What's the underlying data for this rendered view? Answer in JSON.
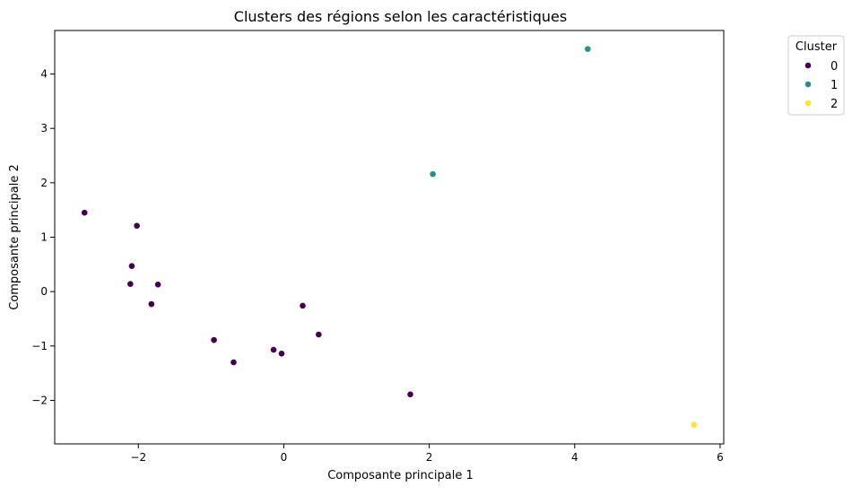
{
  "chart_data": {
    "type": "scatter",
    "title": "Clusters des régions selon les caractéristiques",
    "xlabel": "Composante principale 1",
    "ylabel": "Composante principale 2",
    "xlim": [
      -3.15,
      6.05
    ],
    "ylim": [
      -2.8,
      4.8
    ],
    "xticks": [
      -2,
      0,
      2,
      4,
      6
    ],
    "yticks": [
      -2,
      -1,
      0,
      1,
      2,
      3,
      4
    ],
    "xtick_labels": [
      "−2",
      "0",
      "2",
      "4",
      "6"
    ],
    "ytick_labels": [
      "−2",
      "−1",
      "0",
      "1",
      "2",
      "3",
      "4"
    ],
    "grid": false,
    "legend": {
      "title": "Cluster",
      "placement": "outside-top-right",
      "entries": [
        {
          "label": "0",
          "color": "#440154"
        },
        {
          "label": "1",
          "color": "#21918c"
        },
        {
          "label": "2",
          "color": "#fde725"
        }
      ]
    },
    "series": [
      {
        "name": "0",
        "color": "#440154",
        "points": [
          {
            "x": -2.74,
            "y": 1.45
          },
          {
            "x": -2.02,
            "y": 1.21
          },
          {
            "x": -2.09,
            "y": 0.47
          },
          {
            "x": -2.11,
            "y": 0.14
          },
          {
            "x": -1.73,
            "y": 0.13
          },
          {
            "x": -1.82,
            "y": -0.23
          },
          {
            "x": -0.96,
            "y": -0.89
          },
          {
            "x": -0.69,
            "y": -1.3
          },
          {
            "x": -0.14,
            "y": -1.07
          },
          {
            "x": -0.03,
            "y": -1.14
          },
          {
            "x": 0.26,
            "y": -0.26
          },
          {
            "x": 0.48,
            "y": -0.79
          },
          {
            "x": 1.74,
            "y": -1.89
          }
        ]
      },
      {
        "name": "1",
        "color": "#21918c",
        "points": [
          {
            "x": 2.05,
            "y": 2.16
          },
          {
            "x": 4.18,
            "y": 4.46
          }
        ]
      },
      {
        "name": "2",
        "color": "#fde725",
        "points": [
          {
            "x": 5.64,
            "y": -2.45
          }
        ]
      }
    ]
  }
}
